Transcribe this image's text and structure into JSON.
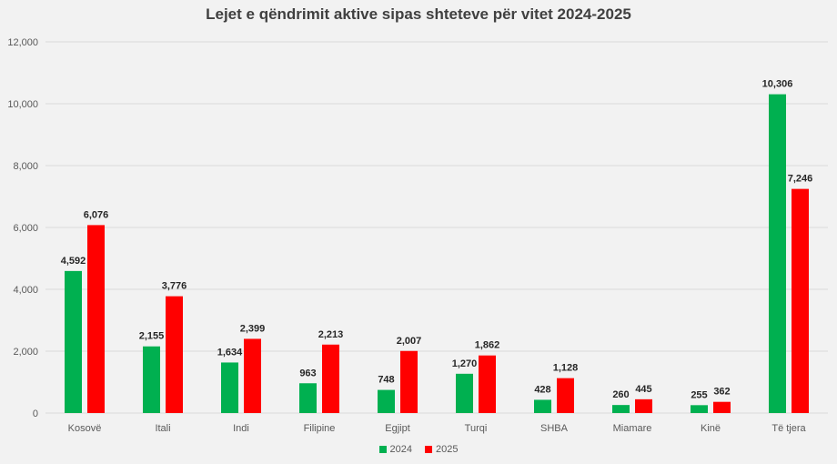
{
  "chart_data": {
    "type": "bar",
    "title": "Lejet e qëndrimit aktive sipas shteteve për vitet 2024-2025",
    "categories": [
      "Kosovë",
      "Itali",
      "Indi",
      "Filipine",
      "Egjipt",
      "Turqi",
      "SHBA",
      "Miamare",
      "Kinë",
      "Të tjera"
    ],
    "series": [
      {
        "name": "2024",
        "color": "#00b050",
        "values": [
          4592,
          2155,
          1634,
          963,
          748,
          1270,
          428,
          260,
          255,
          10306
        ],
        "labels": [
          "4,592",
          "2,155",
          "1,634",
          "963",
          "748",
          "1,270",
          "428",
          "260",
          "255",
          "10,306"
        ]
      },
      {
        "name": "2025",
        "color": "#ff0000",
        "values": [
          6076,
          3776,
          2399,
          2213,
          2007,
          1862,
          1128,
          445,
          362,
          7246
        ],
        "labels": [
          "6,076",
          "3,776",
          "2,399",
          "2,213",
          "2,007",
          "1,862",
          "1,128",
          "445",
          "362",
          "7,246"
        ]
      }
    ],
    "ylim": [
      0,
      12000
    ],
    "yticks": [
      0,
      2000,
      4000,
      6000,
      8000,
      10000,
      12000
    ],
    "ytick_labels": [
      "0",
      "2,000",
      "4,000",
      "6,000",
      "8,000",
      "10,000",
      "12,000"
    ],
    "grid": true,
    "legend_position": "bottom"
  }
}
